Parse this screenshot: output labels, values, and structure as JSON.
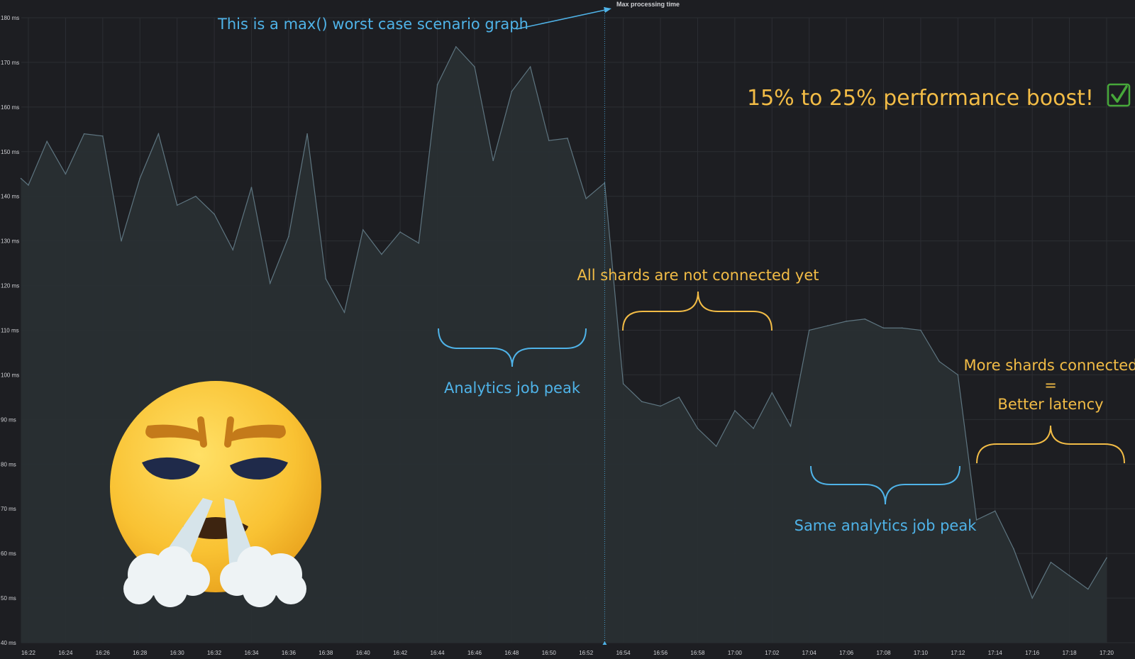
{
  "chart_data": {
    "type": "area",
    "title": "",
    "xlabel": "",
    "ylabel": "",
    "ylim": [
      40,
      180
    ],
    "y_unit": "ms",
    "grid": true,
    "y_ticks": [
      "40 ms",
      "50 ms",
      "60 ms",
      "70 ms",
      "80 ms",
      "90 ms",
      "100 ms",
      "110 ms",
      "120 ms",
      "130 ms",
      "140 ms",
      "150 ms",
      "160 ms",
      "170 ms",
      "180 ms"
    ],
    "x_ticks": [
      "16:22",
      "16:24",
      "16:26",
      "16:28",
      "16:30",
      "16:32",
      "16:34",
      "16:36",
      "16:38",
      "16:40",
      "16:42",
      "16:44",
      "16:46",
      "16:48",
      "16:50",
      "16:52",
      "16:54",
      "16:56",
      "16:58",
      "17:00",
      "17:02",
      "17:04",
      "17:06",
      "17:08",
      "17:10",
      "17:12",
      "17:14",
      "17:16",
      "17:18",
      "17:20"
    ],
    "x_start_minute": 982,
    "x_end_minute": 1040,
    "series": [
      {
        "name": "Max processing time",
        "color": "#5e7580",
        "fill": "#292f33",
        "points": [
          [
            981.6,
            144
          ],
          [
            982,
            142.5
          ],
          [
            983,
            152.3
          ],
          [
            984,
            145
          ],
          [
            985,
            154
          ],
          [
            986,
            153.5
          ],
          [
            987,
            130
          ],
          [
            988,
            144
          ],
          [
            989,
            154
          ],
          [
            990,
            138
          ],
          [
            991,
            140
          ],
          [
            992,
            136
          ],
          [
            993,
            128
          ],
          [
            994,
            142
          ],
          [
            995,
            120.5
          ],
          [
            996,
            131
          ],
          [
            997,
            154
          ],
          [
            998,
            121.5
          ],
          [
            999,
            114
          ],
          [
            1000,
            132.5
          ],
          [
            1001,
            127
          ],
          [
            1002,
            132
          ],
          [
            1003,
            129.5
          ],
          [
            1004,
            165
          ],
          [
            1005,
            173.5
          ],
          [
            1006,
            169
          ],
          [
            1007,
            148
          ],
          [
            1008,
            163.5
          ],
          [
            1009,
            169
          ],
          [
            1010,
            152.5
          ],
          [
            1011,
            153
          ],
          [
            1012,
            139.5
          ],
          [
            1013,
            143
          ],
          [
            1014,
            98
          ],
          [
            1015,
            94
          ],
          [
            1016,
            93
          ],
          [
            1017,
            95
          ],
          [
            1018,
            88
          ],
          [
            1019,
            84
          ],
          [
            1020,
            92
          ],
          [
            1021,
            88
          ],
          [
            1022,
            96
          ],
          [
            1023,
            88.5
          ],
          [
            1024,
            110
          ],
          [
            1025,
            111
          ],
          [
            1026,
            112
          ],
          [
            1027,
            112.5
          ],
          [
            1028,
            110.5
          ],
          [
            1029,
            110.5
          ],
          [
            1030,
            110
          ],
          [
            1031,
            103
          ],
          [
            1032,
            100
          ],
          [
            1033,
            67.5
          ],
          [
            1034,
            69.5
          ],
          [
            1035,
            61
          ],
          [
            1036,
            50
          ],
          [
            1037,
            58
          ],
          [
            1038,
            55
          ],
          [
            1039,
            52
          ],
          [
            1040,
            59
          ]
        ]
      }
    ],
    "cursor_marker_minute": 1013,
    "annotations": {
      "worst_case": "This is a max() worst case scenario graph",
      "boost": "15% to 25% performance boost!",
      "boost_icon": "check-mark-button-icon",
      "analytics_peak": "Analytics job peak",
      "not_connected": "All shards are not connected yet",
      "same_peak": "Same analytics job peak",
      "more_shards_1": "More shards connected",
      "more_shards_2": "=",
      "more_shards_3": "Better latency",
      "emoji_icon": "face-with-steam-from-nose-emoji"
    }
  }
}
